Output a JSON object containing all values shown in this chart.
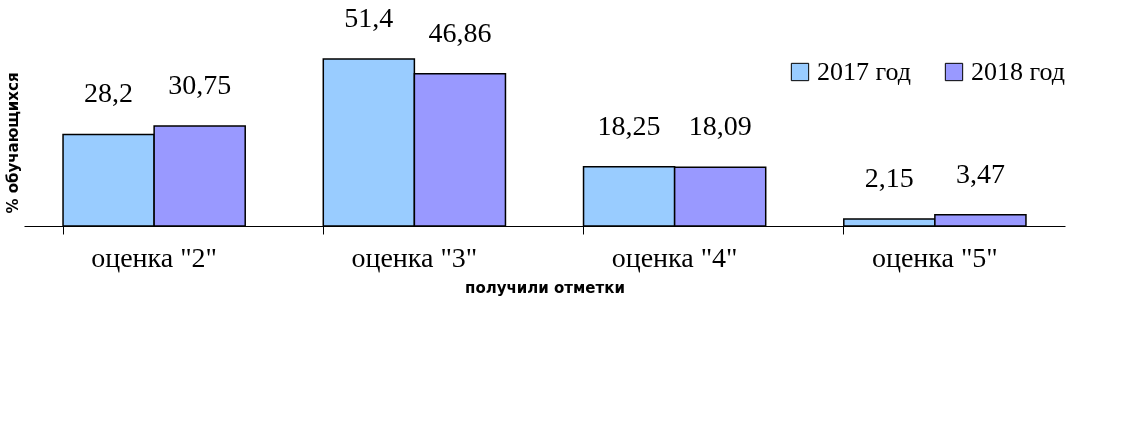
{
  "chart_data": {
    "type": "bar",
    "xlabel": "получили отметки",
    "ylabel": "% обучающихся",
    "categories": [
      "оценка \"2\"",
      "оценка \"3\"",
      "оценка \"4\"",
      "оценка \"5\""
    ],
    "series": [
      {
        "name": "2017 год",
        "color": "#99ccff",
        "values": [
          28.2,
          51.4,
          18.25,
          2.15
        ],
        "value_labels": [
          "28,2",
          "51,4",
          "18,25",
          "2,15"
        ]
      },
      {
        "name": "2018 год",
        "color": "#9999ff",
        "values": [
          30.75,
          46.86,
          18.09,
          3.47
        ],
        "value_labels": [
          "30,75",
          "46,86",
          "18,09",
          "3,47"
        ]
      }
    ],
    "relative": false,
    "legend": "top right",
    "grid": false
  }
}
